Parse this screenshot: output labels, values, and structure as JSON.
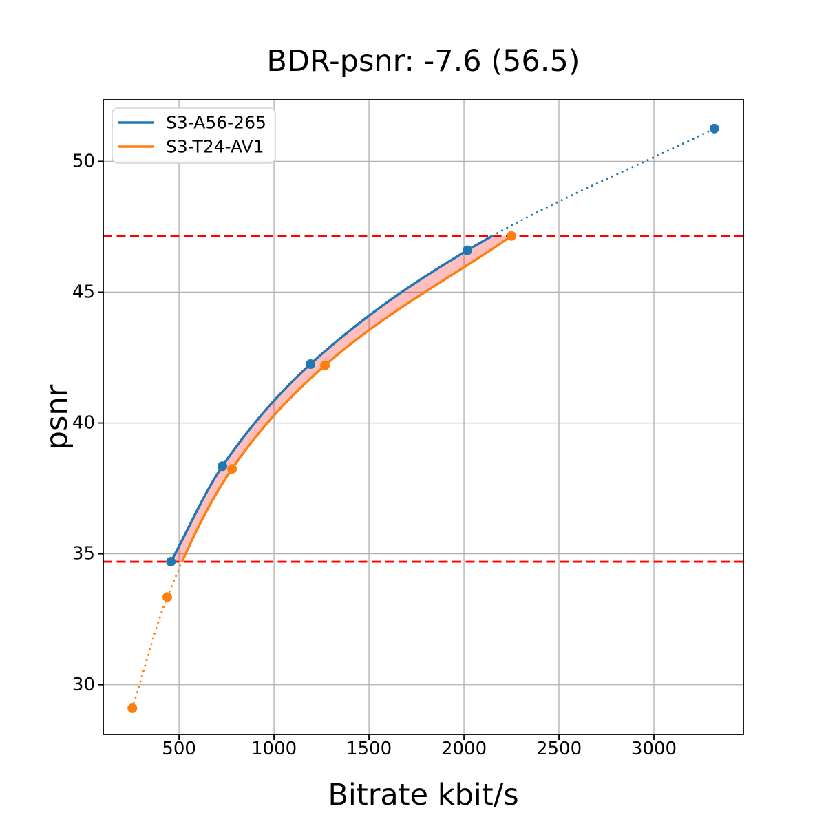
{
  "chart_data": {
    "type": "line",
    "title": "BDR-psnr: -7.6 (56.5)",
    "xlabel": "Bitrate kbit/s",
    "ylabel": "psnr",
    "xlim": [
      101,
      3471
    ],
    "ylim": [
      28.1,
      52.35
    ],
    "xticks": [
      500,
      1000,
      1500,
      2000,
      2500,
      3000
    ],
    "yticks": [
      30,
      35,
      40,
      45,
      50
    ],
    "grid": true,
    "grid_color": "#b0b0b0",
    "legend_position": "upper-left",
    "series": [
      {
        "name": "S3-A56-265",
        "color": "#1f77b4",
        "x": [
          457,
          728,
          1192,
          2018,
          3318
        ],
        "y": [
          34.7,
          38.35,
          42.25,
          46.6,
          51.25
        ]
      },
      {
        "name": "S3-T24-AV1",
        "color": "#ff7f0e",
        "x": [
          254,
          438,
          779,
          1268,
          2250
        ],
        "y": [
          29.1,
          33.35,
          38.25,
          42.2,
          47.15
        ]
      }
    ],
    "overlap_interval": {
      "lower_psnr": 34.7,
      "upper_psnr": 47.15,
      "line_color": "#ff0000",
      "fill_color": "#ff0000",
      "fill_opacity": 0.25
    }
  }
}
